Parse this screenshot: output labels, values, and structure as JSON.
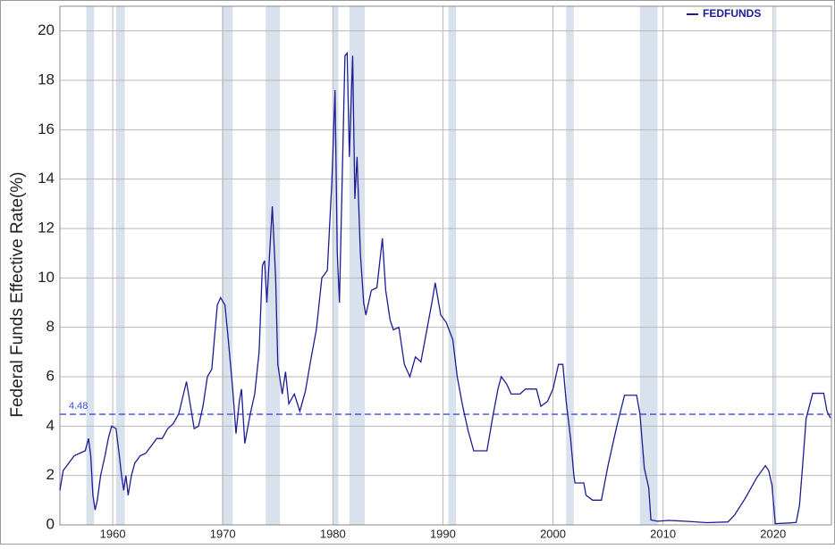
{
  "chart_data": {
    "type": "line",
    "y_label": "Federal Funds Effective Rate(%)",
    "x": [
      1955.2,
      1955.5,
      1956.0,
      1956.5,
      1957.0,
      1957.5,
      1957.8,
      1958.0,
      1958.2,
      1958.4,
      1958.6,
      1958.9,
      1959.3,
      1959.6,
      1959.9,
      1960.3,
      1960.6,
      1960.8,
      1961.0,
      1961.2,
      1961.4,
      1961.7,
      1962.0,
      1962.5,
      1963.0,
      1963.5,
      1964.0,
      1964.5,
      1965.0,
      1965.5,
      1966.0,
      1966.7,
      1967.0,
      1967.4,
      1967.8,
      1968.2,
      1968.6,
      1969.0,
      1969.5,
      1969.8,
      1970.2,
      1970.5,
      1970.9,
      1971.2,
      1971.5,
      1971.7,
      1972.0,
      1972.5,
      1972.9,
      1973.3,
      1973.6,
      1973.8,
      1974.0,
      1974.5,
      1974.8,
      1975.0,
      1975.4,
      1975.7,
      1976.0,
      1976.5,
      1977.0,
      1977.5,
      1978.0,
      1978.5,
      1979.0,
      1979.5,
      1979.9,
      1980.2,
      1980.4,
      1980.6,
      1980.9,
      1981.1,
      1981.3,
      1981.5,
      1981.8,
      1982.0,
      1982.2,
      1982.5,
      1982.8,
      1983.0,
      1983.5,
      1984.0,
      1984.5,
      1984.8,
      1985.2,
      1985.5,
      1986.0,
      1986.5,
      1987.0,
      1987.5,
      1988.0,
      1988.5,
      1989.0,
      1989.3,
      1989.8,
      1990.3,
      1990.9,
      1991.3,
      1991.8,
      1992.3,
      1992.8,
      1993.5,
      1994.0,
      1994.5,
      1995.0,
      1995.3,
      1995.8,
      1996.2,
      1997.0,
      1997.5,
      1998.5,
      1998.9,
      1999.5,
      2000.0,
      2000.5,
      2000.9,
      2001.2,
      2001.6,
      2001.9,
      2002.0,
      2002.8,
      2003.0,
      2003.6,
      2004.4,
      2005.0,
      2005.8,
      2006.5,
      2007.6,
      2007.9,
      2008.3,
      2008.7,
      2008.9,
      2009.5,
      2010.5,
      2012.0,
      2014.0,
      2015.9,
      2016.5,
      2017.5,
      2018.5,
      2019.3,
      2019.6,
      2019.9,
      2020.2,
      2021.5,
      2022.1,
      2022.4,
      2022.7,
      2023.0,
      2023.6,
      2024.6,
      2024.9,
      2025.2
    ],
    "series": [
      {
        "name": "FEDFUNDS",
        "color": "#1c1c96",
        "values": [
          1.4,
          2.2,
          2.5,
          2.8,
          2.9,
          3.0,
          3.5,
          2.8,
          1.2,
          0.6,
          1.0,
          2.0,
          2.8,
          3.5,
          4.0,
          3.9,
          2.8,
          2.0,
          1.4,
          2.0,
          1.2,
          2.0,
          2.5,
          2.8,
          2.9,
          3.2,
          3.5,
          3.5,
          3.9,
          4.1,
          4.5,
          5.8,
          5.0,
          3.9,
          4.0,
          4.8,
          6.0,
          6.3,
          8.9,
          9.2,
          8.9,
          7.5,
          5.5,
          3.7,
          5.0,
          5.5,
          3.3,
          4.5,
          5.3,
          7.0,
          10.5,
          10.7,
          9.0,
          12.9,
          10.0,
          6.5,
          5.3,
          6.2,
          4.9,
          5.3,
          4.6,
          5.4,
          6.7,
          7.9,
          10.0,
          10.3,
          13.8,
          17.6,
          11.0,
          9.0,
          15.0,
          19.0,
          19.1,
          14.9,
          19.0,
          13.2,
          14.9,
          11.0,
          9.0,
          8.5,
          9.5,
          9.6,
          11.6,
          9.5,
          8.3,
          7.9,
          8.0,
          6.5,
          6.0,
          6.8,
          6.6,
          7.8,
          9.0,
          9.8,
          8.5,
          8.2,
          7.5,
          6.0,
          4.8,
          3.8,
          3.0,
          3.0,
          3.0,
          4.3,
          5.5,
          6.0,
          5.7,
          5.3,
          5.3,
          5.5,
          5.5,
          4.8,
          5.0,
          5.5,
          6.5,
          6.5,
          5.0,
          3.5,
          2.0,
          1.7,
          1.7,
          1.2,
          1.0,
          1.0,
          2.4,
          4.0,
          5.25,
          5.25,
          4.5,
          2.3,
          1.5,
          0.2,
          0.15,
          0.18,
          0.15,
          0.09,
          0.12,
          0.4,
          1.1,
          1.9,
          2.4,
          2.2,
          1.6,
          0.05,
          0.08,
          0.1,
          0.8,
          2.5,
          4.3,
          5.33,
          5.33,
          4.6,
          4.33
        ]
      }
    ],
    "xlim": [
      1955.2,
      2025.3
    ],
    "ylim": [
      0,
      21
    ],
    "xticks": [
      1960,
      1970,
      1980,
      1990,
      2000,
      2010,
      2020
    ],
    "yticks": [
      0,
      2,
      4,
      6,
      8,
      10,
      12,
      14,
      16,
      18,
      20
    ],
    "grid": true,
    "legend": "upper right",
    "reference_line": {
      "value": 4.48,
      "color": "#3a4ee0"
    },
    "recessions": [
      [
        1957.6,
        1958.3
      ],
      [
        1960.3,
        1961.1
      ],
      [
        1969.9,
        1970.9
      ],
      [
        1973.9,
        1975.2
      ],
      [
        1980.0,
        1980.5
      ],
      [
        1981.5,
        1982.9
      ],
      [
        1990.5,
        1991.2
      ],
      [
        2001.2,
        2001.9
      ],
      [
        2007.9,
        2009.5
      ],
      [
        2020.1,
        2020.3
      ]
    ],
    "recession_color": "#d9e1ec"
  }
}
